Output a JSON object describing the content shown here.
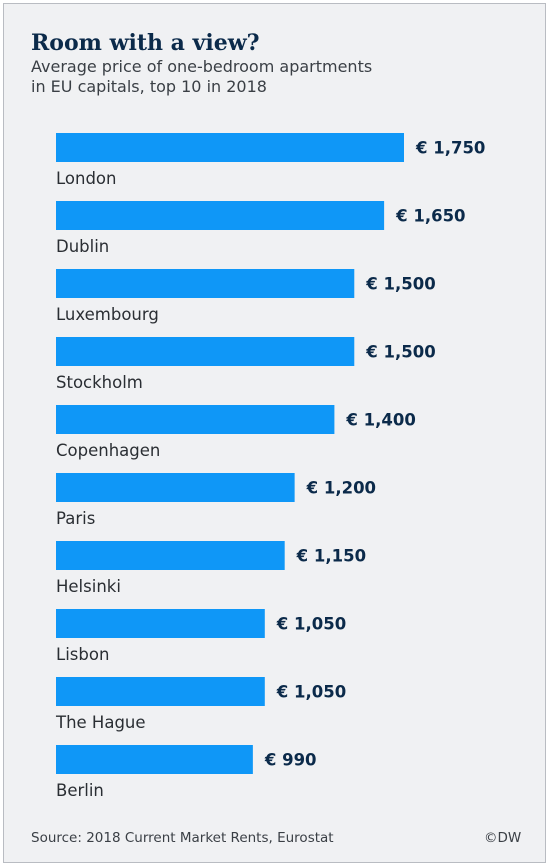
{
  "header": {
    "title": "Room with a view?",
    "subtitle_lines": [
      "Average price of one-bedroom apartments",
      "in EU capitals, top 10 in 2018"
    ]
  },
  "footer": {
    "source": "Source: 2018 Current Market Rents, Eurostat",
    "credit": "©DW"
  },
  "colors": {
    "bar": "#0f97f7",
    "value_text": "#0b2a4a",
    "label_text": "#2a2e33"
  },
  "chart_data": {
    "type": "bar",
    "orientation": "horizontal",
    "categories": [
      "London",
      "Dublin",
      "Luxembourg",
      "Stockholm",
      "Copenhagen",
      "Paris",
      "Helsinki",
      "Lisbon",
      "The Hague",
      "Berlin"
    ],
    "values": [
      1750,
      1650,
      1500,
      1500,
      1400,
      1200,
      1150,
      1050,
      1050,
      990
    ],
    "value_labels": [
      "€ 1,750",
      "€ 1,650",
      "€ 1,500",
      "€ 1,500",
      "€ 1,400",
      "€ 1,200",
      "€ 1,150",
      "€ 1,050",
      "€ 1,050",
      "€ 990"
    ],
    "title": "Room with a view?",
    "xlabel": "",
    "ylabel": "",
    "xlim": [
      0,
      1750
    ],
    "grid": false,
    "legend": "none"
  }
}
